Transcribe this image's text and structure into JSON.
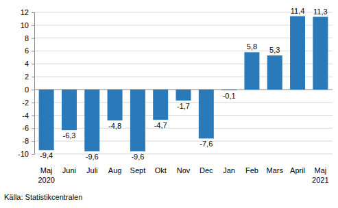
{
  "chart_data": {
    "type": "bar",
    "categories": [
      "Maj\n2020",
      "Juni",
      "Juli",
      "Aug",
      "Sept",
      "Okt",
      "Nov",
      "Dec",
      "Jan",
      "Feb",
      "Mars",
      "April",
      "Maj\n2021"
    ],
    "values": [
      -9.4,
      -6.3,
      -9.6,
      -4.8,
      -9.6,
      -4.7,
      -1.7,
      -7.6,
      -0.1,
      5.8,
      5.3,
      11.4,
      11.3
    ],
    "value_labels": [
      "-9,4",
      "-6,3",
      "-9,6",
      "-4,8",
      "-9,6",
      "-4,7",
      "-1,7",
      "-7,6",
      "-0,1",
      "5,8",
      "5,3",
      "11,4",
      "11,3"
    ],
    "data_labels": true,
    "color": "#2a79b8",
    "ylim": [
      -10,
      12
    ],
    "yticks": [
      -10,
      -8,
      -6,
      -4,
      -2,
      0,
      2,
      4,
      6,
      8,
      10,
      12
    ],
    "grid": true,
    "source": "Källa: Statistikcentralen"
  }
}
